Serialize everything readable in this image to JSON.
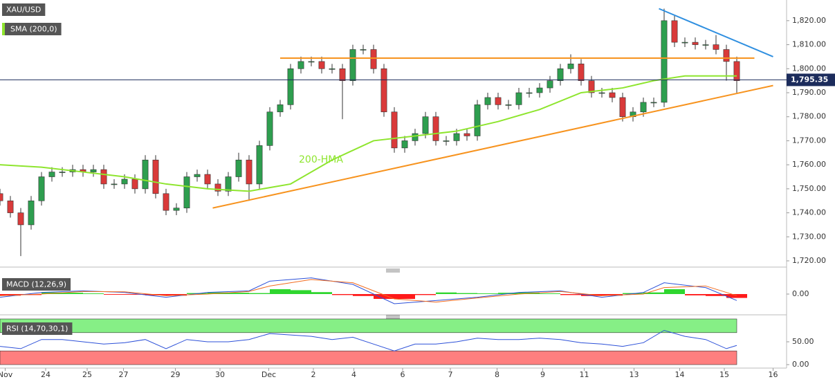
{
  "chart_data": [
    {
      "type": "candlestick",
      "title": "XAU/USD",
      "x": [
        0,
        1,
        2,
        3,
        4,
        5,
        6,
        7,
        8,
        9,
        10,
        11,
        12,
        13,
        14,
        15,
        16,
        17,
        18,
        19,
        20,
        21,
        22,
        23,
        24,
        25,
        26,
        27,
        28,
        29,
        30,
        31,
        32,
        33,
        34,
        35,
        36,
        37,
        38,
        39,
        40,
        41,
        42,
        43,
        44,
        45,
        46,
        47,
        48,
        49,
        50,
        51,
        52,
        53,
        54,
        55,
        56,
        57,
        58,
        59,
        60,
        61,
        62,
        63,
        64,
        65,
        66,
        67,
        68,
        69,
        70,
        71
      ],
      "open": [
        1748,
        1745,
        1740,
        1735,
        1745,
        1755,
        1757,
        1757,
        1758,
        1757,
        1758,
        1752,
        1752,
        1754,
        1750,
        1762,
        1748,
        1741,
        1742,
        1755,
        1756,
        1752,
        1749,
        1755,
        1762,
        1752,
        1768,
        1782,
        1785,
        1800,
        1803,
        1803,
        1800,
        1800,
        1795,
        1808,
        1808,
        1800,
        1782,
        1767,
        1770,
        1773,
        1780,
        1770,
        1770,
        1773,
        1772,
        1785,
        1788,
        1785,
        1785,
        1790,
        1790,
        1792,
        1795,
        1800,
        1802,
        1795,
        1790,
        1790,
        1788,
        1780,
        1782,
        1786,
        1786,
        1820,
        1811,
        1811,
        1810,
        1810,
        1808,
        1803
      ],
      "high": [
        1750,
        1747,
        1742,
        1747,
        1757,
        1759,
        1759,
        1760,
        1760,
        1760,
        1760,
        1754,
        1756,
        1756,
        1764,
        1764,
        1750,
        1744,
        1757,
        1758,
        1758,
        1754,
        1757,
        1765,
        1764,
        1770,
        1784,
        1787,
        1802,
        1805,
        1805,
        1805,
        1802,
        1802,
        1810,
        1810,
        1810,
        1802,
        1784,
        1772,
        1775,
        1782,
        1782,
        1772,
        1775,
        1775,
        1787,
        1790,
        1790,
        1787,
        1792,
        1792,
        1794,
        1797,
        1802,
        1806,
        1804,
        1797,
        1792,
        1792,
        1790,
        1784,
        1788,
        1788,
        1825,
        1822,
        1813,
        1813,
        1812,
        1814,
        1810,
        1805
      ],
      "low": [
        1743,
        1738,
        1722,
        1733,
        1743,
        1753,
        1755,
        1755,
        1755,
        1755,
        1750,
        1750,
        1750,
        1748,
        1748,
        1746,
        1739,
        1739,
        1740,
        1753,
        1750,
        1747,
        1747,
        1753,
        1745,
        1750,
        1766,
        1780,
        1783,
        1798,
        1801,
        1798,
        1798,
        1779,
        1793,
        1806,
        1798,
        1780,
        1765,
        1765,
        1768,
        1771,
        1768,
        1768,
        1768,
        1770,
        1770,
        1783,
        1783,
        1783,
        1783,
        1788,
        1788,
        1790,
        1793,
        1798,
        1793,
        1788,
        1788,
        1786,
        1778,
        1778,
        1780,
        1784,
        1784,
        1809,
        1809,
        1808,
        1808,
        1806,
        1795,
        1790
      ],
      "close": [
        1745,
        1740,
        1735,
        1745,
        1755,
        1757,
        1757,
        1758,
        1757,
        1758,
        1752,
        1752,
        1754,
        1750,
        1762,
        1748,
        1741,
        1742,
        1755,
        1756,
        1752,
        1749,
        1755,
        1762,
        1752,
        1768,
        1782,
        1785,
        1800,
        1803,
        1803,
        1800,
        1800,
        1795,
        1808,
        1808,
        1800,
        1782,
        1767,
        1770,
        1773,
        1780,
        1770,
        1770,
        1773,
        1772,
        1785,
        1788,
        1785,
        1785,
        1790,
        1790,
        1792,
        1795,
        1800,
        1802,
        1795,
        1790,
        1790,
        1788,
        1780,
        1782,
        1786,
        1786,
        1820,
        1811,
        1811,
        1810,
        1810,
        1808,
        1803,
        1795
      ],
      "up_color": "#2e9e4f",
      "down_color": "#d93a3a",
      "series": [
        {
          "name": "SMA (200,0)",
          "color": "#8ee52e",
          "x": [
            0,
            4,
            8,
            12,
            16,
            20,
            24,
            28,
            32,
            36,
            40,
            44,
            48,
            52,
            56,
            60,
            63,
            66,
            71
          ],
          "values": [
            1760,
            1759,
            1757,
            1755,
            1752,
            1750,
            1749,
            1752,
            1762,
            1770,
            1772,
            1774,
            1778,
            1783,
            1790,
            1792,
            1795,
            1797,
            1797
          ]
        }
      ],
      "annotations": [
        "200-HMA"
      ],
      "trendlines": [
        {
          "x": [
            20.5,
            74.5
          ],
          "values": [
            1742,
            1793
          ],
          "color": "#f7931e"
        },
        {
          "x": [
            27,
            72.7
          ],
          "values": [
            1804.4,
            1804.4
          ],
          "color": "#f7931e"
        },
        {
          "x": [
            63.5,
            74.5
          ],
          "values": [
            1825,
            1805
          ],
          "color": "#2f8fe0"
        }
      ],
      "current_price": {
        "value": 1795.35,
        "label": "1,795.35"
      },
      "price_color": "#1c2c5c",
      "xlim": [
        0,
        75.8
      ],
      "xticks": [
        {
          "value": 0.5,
          "label": "Nov"
        },
        {
          "value": 4.4,
          "label": "24"
        },
        {
          "value": 8.4,
          "label": "25"
        },
        {
          "value": 11.9,
          "label": "27"
        },
        {
          "value": 16.9,
          "label": "29"
        },
        {
          "value": 21.2,
          "label": "30"
        },
        {
          "value": 25.9,
          "label": "Dec"
        },
        {
          "value": 30.2,
          "label": "2"
        },
        {
          "value": 34.1,
          "label": "4"
        },
        {
          "value": 38.8,
          "label": "6"
        },
        {
          "value": 43.4,
          "label": "7"
        },
        {
          "value": 47.9,
          "label": "8"
        },
        {
          "value": 52.3,
          "label": "9"
        },
        {
          "value": 56.3,
          "label": "11"
        },
        {
          "value": 61.1,
          "label": "13"
        },
        {
          "value": 65.5,
          "label": "14"
        },
        {
          "value": 69.8,
          "label": "15"
        },
        {
          "value": 74.5,
          "label": "16"
        }
      ],
      "ylim": [
        1717.7,
        1828.6
      ],
      "yticks": [
        {
          "value": 1720,
          "label": "1,720.00"
        },
        {
          "value": 1730,
          "label": "1,730.00"
        },
        {
          "value": 1740,
          "label": "1,740.00"
        },
        {
          "value": 1750,
          "label": "1,750.00"
        },
        {
          "value": 1760,
          "label": "1,760.00"
        },
        {
          "value": 1770,
          "label": "1,770.00"
        },
        {
          "value": 1780,
          "label": "1,780.00"
        },
        {
          "value": 1790,
          "label": "1,790.00"
        },
        {
          "value": 1800,
          "label": "1,800.00"
        },
        {
          "value": 1810,
          "label": "1,810.00"
        },
        {
          "value": 1820,
          "label": "1,820.00"
        }
      ]
    },
    {
      "type": "macd",
      "title": "MACD (12,26,9)",
      "series": [
        {
          "color": "#2b4fd8",
          "x": [
            0,
            4,
            8,
            12,
            16,
            20,
            24,
            26,
            30,
            34,
            38,
            42,
            46,
            50,
            54,
            58,
            62,
            64,
            68,
            71
          ],
          "values": [
            -1,
            0.5,
            1,
            0.5,
            -1,
            0.5,
            1,
            4,
            5,
            3,
            -3,
            -2,
            -1,
            0.5,
            1,
            -1,
            0.5,
            3.5,
            2,
            -2
          ]
        },
        {
          "color": "#f26b1d",
          "x": [
            0,
            4,
            8,
            12,
            16,
            20,
            24,
            26,
            30,
            34,
            38,
            42,
            46,
            50,
            54,
            58,
            62,
            64,
            68,
            71
          ],
          "values": [
            -0.5,
            0,
            0.8,
            0.7,
            -0.5,
            0,
            0.8,
            2.5,
            4.5,
            3.5,
            -1.5,
            -2.5,
            -1.2,
            0,
            0.8,
            -0.5,
            0,
            2,
            2.5,
            -0.5
          ]
        }
      ],
      "histogram": {
        "up_color": "#2fd62f",
        "down_color": "#ff1a1a",
        "x": [
          0,
          2,
          4,
          6,
          8,
          10,
          12,
          14,
          16,
          18,
          20,
          22,
          24,
          26,
          28,
          30,
          32,
          34,
          36,
          38,
          40,
          42,
          44,
          46,
          48,
          50,
          52,
          54,
          56,
          58,
          60,
          62,
          64,
          66,
          68,
          70
        ],
        "values": [
          -0.5,
          -0.3,
          0.5,
          0.4,
          0.2,
          -0.2,
          -0.2,
          -0.4,
          -0.5,
          0.3,
          0.5,
          0.4,
          0.3,
          1.5,
          1.2,
          0.6,
          -0.3,
          -0.6,
          -1.5,
          -1.5,
          -0.3,
          0.5,
          0.3,
          0.2,
          0.4,
          0.5,
          0.2,
          -0.3,
          -0.6,
          -0.5,
          0.3,
          0.5,
          1.5,
          -0.4,
          -0.6,
          -1.2
        ]
      },
      "ylim": [
        -6,
        6
      ],
      "yticks": [
        {
          "value": 0,
          "label": "0.00"
        }
      ]
    },
    {
      "type": "line",
      "title": "RSI (14,70,30,1)",
      "bands": [
        {
          "from": 70,
          "to": 100,
          "color": "#86ef86"
        },
        {
          "from": 0,
          "to": 30,
          "color": "#ff7f7f"
        }
      ],
      "series": [
        {
          "color": "#2b4fd8",
          "x": [
            0,
            2,
            4,
            6,
            8,
            10,
            12,
            14,
            16,
            18,
            20,
            22,
            24,
            26,
            28,
            30,
            32,
            34,
            36,
            38,
            40,
            42,
            44,
            46,
            48,
            50,
            52,
            54,
            56,
            58,
            60,
            62,
            64,
            66,
            68,
            70,
            71
          ],
          "values": [
            40,
            35,
            55,
            55,
            50,
            45,
            48,
            55,
            35,
            55,
            50,
            50,
            55,
            68,
            65,
            62,
            55,
            60,
            45,
            30,
            45,
            45,
            50,
            58,
            55,
            55,
            58,
            55,
            48,
            45,
            40,
            48,
            75,
            62,
            55,
            35,
            42
          ]
        }
      ],
      "ylim": [
        0,
        100
      ],
      "yticks": [
        {
          "value": 0,
          "label": "0.00"
        },
        {
          "value": 50,
          "label": "50.00"
        }
      ]
    }
  ]
}
